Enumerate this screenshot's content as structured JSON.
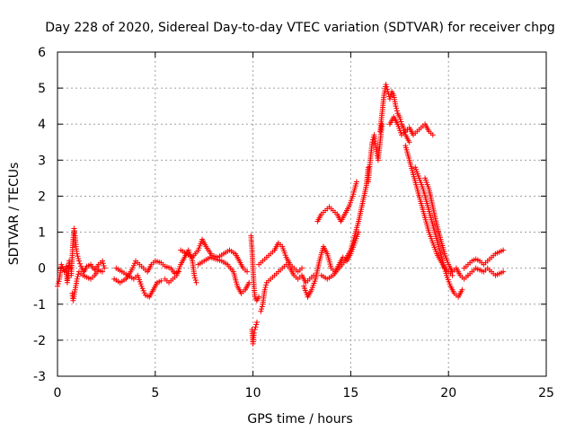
{
  "chart_data": {
    "type": "scatter",
    "title": "Day 228 of 2020, Sidereal Day-to-day VTEC variation (SDTVAR) for receiver chpg",
    "xlabel": "GPS time / hours",
    "ylabel": "SDTVAR / TECUs",
    "xlim": [
      0,
      25
    ],
    "ylim": [
      -3,
      6
    ],
    "xticks": [
      0,
      5,
      10,
      15,
      20,
      25
    ],
    "yticks": [
      -3,
      -2,
      -1,
      0,
      1,
      2,
      3,
      4,
      5,
      6
    ],
    "xtick_labels": [
      "0",
      "5",
      "10",
      "15",
      "20",
      "25"
    ],
    "ytick_labels": [
      "-3",
      "-2",
      "-1",
      "0",
      "1",
      "2",
      "3",
      "4",
      "5",
      "6"
    ],
    "grid": true,
    "marker": "+",
    "color": "#ff0000",
    "series": [
      {
        "name": "SDTVAR",
        "traces": [
          [
            [
              0.0,
              -0.5
            ],
            [
              0.1,
              -0.3
            ],
            [
              0.2,
              0.1
            ],
            [
              0.35,
              -0.1
            ],
            [
              0.45,
              0.05
            ],
            [
              0.5,
              -0.4
            ],
            [
              0.55,
              -0.2
            ],
            [
              0.6,
              0.2
            ],
            [
              0.65,
              0.0
            ]
          ],
          [
            [
              0.7,
              -0.2
            ],
            [
              0.75,
              0.3
            ],
            [
              0.8,
              0.8
            ],
            [
              0.85,
              1.1
            ],
            [
              0.9,
              0.9
            ],
            [
              0.95,
              0.6
            ],
            [
              1.0,
              0.4
            ],
            [
              1.1,
              0.2
            ],
            [
              1.2,
              0.05
            ],
            [
              1.35,
              -0.1
            ],
            [
              1.5,
              0.05
            ],
            [
              1.7,
              0.1
            ],
            [
              1.9,
              -0.05
            ],
            [
              2.1,
              0.1
            ],
            [
              2.3,
              0.2
            ],
            [
              2.4,
              0.0
            ]
          ],
          [
            [
              0.75,
              -0.7
            ],
            [
              0.8,
              -0.9
            ],
            [
              0.9,
              -0.6
            ],
            [
              1.0,
              -0.3
            ],
            [
              1.1,
              -0.1
            ],
            [
              1.3,
              -0.2
            ],
            [
              1.5,
              -0.25
            ],
            [
              1.7,
              -0.3
            ],
            [
              1.9,
              -0.2
            ],
            [
              2.1,
              -0.05
            ],
            [
              2.3,
              -0.1
            ]
          ],
          [
            [
              3.0,
              0.0
            ],
            [
              3.3,
              -0.1
            ],
            [
              3.6,
              -0.2
            ],
            [
              3.9,
              -0.3
            ],
            [
              4.1,
              -0.2
            ],
            [
              4.3,
              -0.5
            ],
            [
              4.5,
              -0.75
            ],
            [
              4.7,
              -0.8
            ],
            [
              4.9,
              -0.6
            ],
            [
              5.1,
              -0.4
            ],
            [
              5.3,
              -0.35
            ]
          ],
          [
            [
              2.9,
              -0.3
            ],
            [
              3.2,
              -0.4
            ],
            [
              3.5,
              -0.3
            ],
            [
              3.8,
              -0.05
            ],
            [
              4.0,
              0.2
            ],
            [
              4.2,
              0.1
            ],
            [
              4.4,
              0.0
            ],
            [
              4.6,
              -0.1
            ],
            [
              4.8,
              0.1
            ],
            [
              5.0,
              0.2
            ],
            [
              5.3,
              0.15
            ],
            [
              5.5,
              0.05
            ],
            [
              5.8,
              0.0
            ],
            [
              6.0,
              -0.15
            ],
            [
              6.2,
              -0.1
            ]
          ],
          [
            [
              5.5,
              -0.3
            ],
            [
              5.7,
              -0.4
            ],
            [
              5.9,
              -0.3
            ],
            [
              6.1,
              -0.2
            ],
            [
              6.3,
              0.1
            ],
            [
              6.5,
              0.3
            ],
            [
              6.7,
              0.5
            ],
            [
              6.9,
              0.2
            ],
            [
              7.0,
              -0.2
            ],
            [
              7.1,
              -0.4
            ]
          ],
          [
            [
              6.3,
              0.5
            ],
            [
              6.6,
              0.4
            ],
            [
              6.9,
              0.3
            ],
            [
              7.2,
              0.5
            ],
            [
              7.4,
              0.8
            ],
            [
              7.6,
              0.6
            ],
            [
              7.9,
              0.35
            ],
            [
              8.2,
              0.3
            ],
            [
              8.5,
              0.4
            ],
            [
              8.8,
              0.5
            ],
            [
              9.1,
              0.4
            ],
            [
              9.3,
              0.2
            ],
            [
              9.5,
              0.0
            ],
            [
              9.7,
              -0.1
            ]
          ],
          [
            [
              7.2,
              0.1
            ],
            [
              7.5,
              0.2
            ],
            [
              7.8,
              0.3
            ],
            [
              8.1,
              0.25
            ],
            [
              8.4,
              0.2
            ],
            [
              8.7,
              0.1
            ],
            [
              9.0,
              -0.1
            ],
            [
              9.2,
              -0.5
            ],
            [
              9.4,
              -0.7
            ],
            [
              9.6,
              -0.6
            ],
            [
              9.8,
              -0.4
            ]
          ],
          [
            [
              9.9,
              0.9
            ],
            [
              9.95,
              0.5
            ],
            [
              10.0,
              0.0
            ],
            [
              10.05,
              -0.5
            ],
            [
              10.1,
              -0.8
            ],
            [
              10.2,
              -0.9
            ],
            [
              10.3,
              -0.8
            ]
          ],
          [
            [
              9.95,
              -1.7
            ],
            [
              10.0,
              -2.1
            ],
            [
              10.05,
              -1.8
            ],
            [
              10.1,
              -1.7
            ],
            [
              10.2,
              -1.5
            ]
          ],
          [
            [
              10.4,
              -1.2
            ],
            [
              10.5,
              -1.0
            ],
            [
              10.6,
              -0.6
            ],
            [
              10.7,
              -0.4
            ],
            [
              10.9,
              -0.3
            ],
            [
              11.1,
              -0.2
            ],
            [
              11.3,
              -0.1
            ],
            [
              11.5,
              0.0
            ],
            [
              11.7,
              0.1
            ],
            [
              11.9,
              0.0
            ],
            [
              12.1,
              -0.2
            ],
            [
              12.3,
              -0.3
            ],
            [
              12.5,
              -0.2
            ],
            [
              12.7,
              -0.4
            ],
            [
              12.9,
              -0.3
            ],
            [
              13.1,
              -0.2
            ]
          ],
          [
            [
              10.3,
              0.1
            ],
            [
              10.5,
              0.2
            ],
            [
              10.7,
              0.3
            ],
            [
              10.9,
              0.4
            ],
            [
              11.1,
              0.5
            ],
            [
              11.3,
              0.7
            ],
            [
              11.5,
              0.6
            ],
            [
              11.7,
              0.3
            ],
            [
              11.9,
              0.1
            ],
            [
              12.1,
              0.0
            ],
            [
              12.3,
              -0.1
            ],
            [
              12.5,
              0.0
            ]
          ],
          [
            [
              12.6,
              -0.5
            ],
            [
              12.8,
              -0.8
            ],
            [
              13.0,
              -0.6
            ],
            [
              13.2,
              -0.3
            ],
            [
              13.4,
              0.2
            ],
            [
              13.6,
              0.6
            ],
            [
              13.8,
              0.4
            ],
            [
              14.0,
              0.0
            ],
            [
              14.2,
              -0.1
            ],
            [
              14.4,
              0.1
            ],
            [
              14.6,
              0.3
            ],
            [
              14.8,
              0.2
            ],
            [
              15.0,
              0.4
            ],
            [
              15.2,
              0.7
            ],
            [
              15.4,
              1.0
            ]
          ],
          [
            [
              13.3,
              1.3
            ],
            [
              13.5,
              1.5
            ],
            [
              13.7,
              1.6
            ],
            [
              13.9,
              1.7
            ],
            [
              14.1,
              1.6
            ],
            [
              14.3,
              1.5
            ],
            [
              14.5,
              1.3
            ],
            [
              14.7,
              1.5
            ],
            [
              14.9,
              1.7
            ],
            [
              15.1,
              2.0
            ],
            [
              15.3,
              2.4
            ]
          ],
          [
            [
              13.5,
              -0.2
            ],
            [
              13.8,
              -0.3
            ],
            [
              14.1,
              -0.2
            ],
            [
              14.4,
              0.0
            ],
            [
              14.7,
              0.2
            ],
            [
              15.0,
              0.5
            ],
            [
              15.2,
              0.9
            ],
            [
              15.4,
              1.3
            ],
            [
              15.6,
              1.8
            ],
            [
              15.8,
              2.3
            ],
            [
              15.9,
              2.8
            ]
          ],
          [
            [
              15.9,
              2.4
            ],
            [
              16.0,
              3.0
            ],
            [
              16.1,
              3.5
            ],
            [
              16.2,
              3.7
            ],
            [
              16.3,
              3.3
            ],
            [
              16.4,
              3.0
            ],
            [
              16.5,
              3.5
            ],
            [
              16.6,
              4.0
            ]
          ],
          [
            [
              16.5,
              3.8
            ],
            [
              16.6,
              4.3
            ],
            [
              16.7,
              4.8
            ],
            [
              16.8,
              5.1
            ],
            [
              16.9,
              4.9
            ],
            [
              17.0,
              4.7
            ],
            [
              17.1,
              4.9
            ],
            [
              17.2,
              4.8
            ],
            [
              17.3,
              4.5
            ],
            [
              17.4,
              4.3
            ],
            [
              17.5,
              4.2
            ],
            [
              17.6,
              4.0
            ],
            [
              17.7,
              3.9
            ],
            [
              17.8,
              3.7
            ],
            [
              17.9,
              3.6
            ],
            [
              18.0,
              3.5
            ]
          ],
          [
            [
              17.0,
              4.0
            ],
            [
              17.2,
              4.2
            ],
            [
              17.4,
              4.0
            ],
            [
              17.6,
              3.7
            ],
            [
              17.8,
              3.8
            ],
            [
              18.0,
              3.9
            ],
            [
              18.2,
              3.7
            ],
            [
              18.4,
              3.8
            ],
            [
              18.6,
              3.9
            ],
            [
              18.8,
              4.0
            ],
            [
              19.0,
              3.8
            ],
            [
              19.2,
              3.7
            ]
          ],
          [
            [
              17.8,
              3.4
            ],
            [
              18.0,
              3.0
            ],
            [
              18.2,
              2.6
            ],
            [
              18.4,
              2.2
            ],
            [
              18.6,
              1.8
            ],
            [
              18.8,
              1.4
            ],
            [
              19.0,
              1.0
            ],
            [
              19.2,
              0.7
            ],
            [
              19.4,
              0.4
            ],
            [
              19.6,
              0.2
            ],
            [
              19.8,
              0.0
            ],
            [
              20.0,
              -0.1
            ],
            [
              20.2,
              -0.2
            ]
          ],
          [
            [
              18.3,
              2.8
            ],
            [
              18.5,
              2.5
            ],
            [
              18.7,
              2.2
            ],
            [
              18.9,
              1.8
            ],
            [
              19.1,
              1.4
            ],
            [
              19.3,
              1.0
            ],
            [
              19.5,
              0.6
            ],
            [
              19.7,
              0.2
            ],
            [
              19.9,
              -0.2
            ],
            [
              20.1,
              -0.5
            ],
            [
              20.3,
              -0.7
            ],
            [
              20.5,
              -0.8
            ],
            [
              20.7,
              -0.6
            ]
          ],
          [
            [
              18.8,
              2.5
            ],
            [
              19.0,
              2.2
            ],
            [
              19.2,
              1.7
            ],
            [
              19.4,
              1.2
            ],
            [
              19.6,
              0.8
            ],
            [
              19.8,
              0.4
            ],
            [
              20.0,
              0.1
            ],
            [
              20.2,
              -0.1
            ],
            [
              20.4,
              0.0
            ],
            [
              20.6,
              -0.2
            ],
            [
              20.8,
              -0.3
            ],
            [
              21.0,
              -0.2
            ]
          ],
          [
            [
              20.8,
              0.0
            ],
            [
              21.0,
              0.1
            ],
            [
              21.2,
              0.2
            ],
            [
              21.4,
              0.25
            ],
            [
              21.6,
              0.2
            ],
            [
              21.8,
              0.1
            ],
            [
              22.0,
              0.2
            ],
            [
              22.2,
              0.3
            ],
            [
              22.4,
              0.4
            ],
            [
              22.6,
              0.45
            ],
            [
              22.8,
              0.5
            ]
          ],
          [
            [
              21.0,
              -0.2
            ],
            [
              21.2,
              -0.1
            ],
            [
              21.4,
              0.0
            ],
            [
              21.6,
              -0.05
            ],
            [
              21.8,
              -0.1
            ],
            [
              22.0,
              0.0
            ],
            [
              22.2,
              -0.1
            ],
            [
              22.4,
              -0.2
            ],
            [
              22.6,
              -0.15
            ],
            [
              22.8,
              -0.1
            ]
          ]
        ]
      }
    ]
  }
}
